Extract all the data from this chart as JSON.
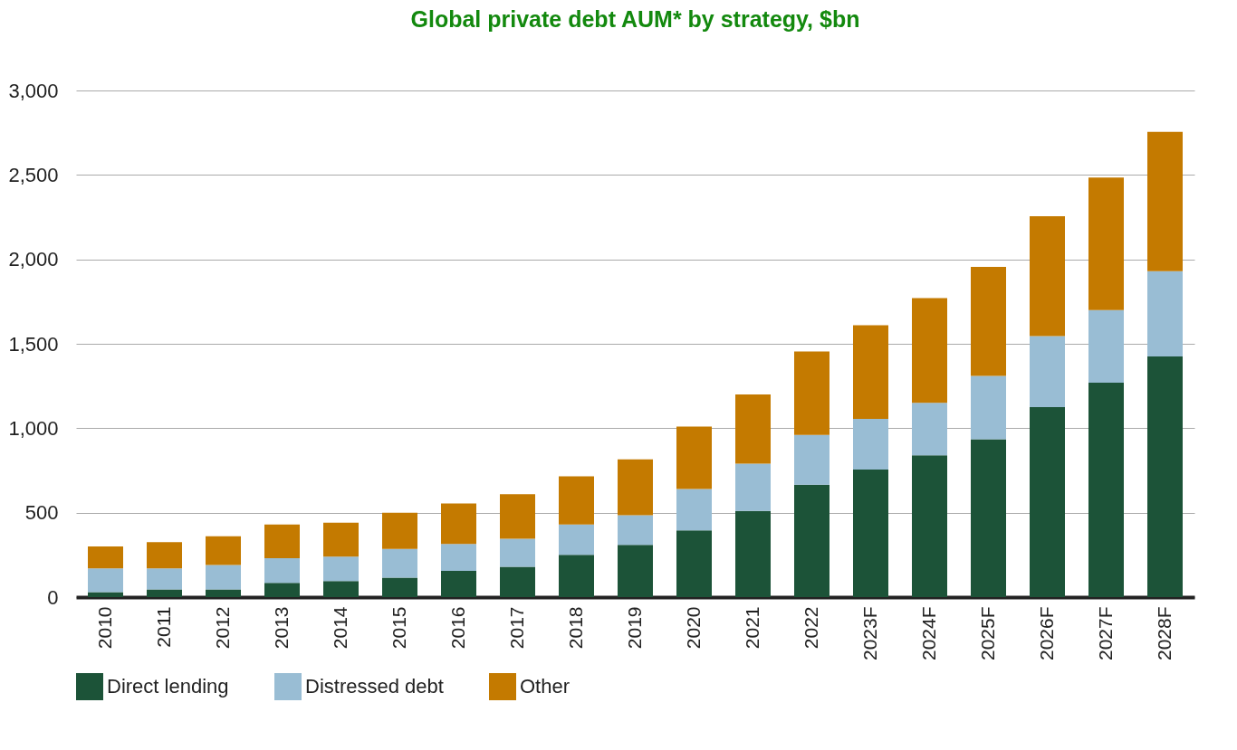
{
  "chart_data": {
    "type": "bar",
    "title": "Global private debt AUM* by strategy, $bn",
    "stacked": true,
    "categories": [
      "2010",
      "2011",
      "2012",
      "2013",
      "2014",
      "2015",
      "2016",
      "2017",
      "2018",
      "2019",
      "2020",
      "2021",
      "2022",
      "2023F",
      "2024F",
      "2025F",
      "2026F",
      "2027F",
      "2028F"
    ],
    "series": [
      {
        "name": "Direct lending",
        "color": "#1c5338",
        "values": [
          30,
          45,
          45,
          85,
          95,
          115,
          155,
          180,
          250,
          310,
          395,
          510,
          665,
          755,
          840,
          935,
          1125,
          1270,
          1425
        ]
      },
      {
        "name": "Distressed debt",
        "color": "#99bdd4",
        "values": [
          140,
          125,
          145,
          145,
          145,
          170,
          160,
          165,
          180,
          175,
          245,
          280,
          295,
          300,
          310,
          375,
          420,
          430,
          505
        ]
      },
      {
        "name": "Other",
        "color": "#c47a00",
        "values": [
          130,
          155,
          170,
          200,
          200,
          215,
          240,
          265,
          285,
          330,
          370,
          410,
          495,
          555,
          620,
          645,
          710,
          785,
          825
        ]
      }
    ],
    "ylim": [
      0,
      3000
    ],
    "yticks": [
      {
        "value": 0,
        "label": "0"
      },
      {
        "value": 500,
        "label": "500"
      },
      {
        "value": 1000,
        "label": "1,000"
      },
      {
        "value": 1500,
        "label": "1,500"
      },
      {
        "value": 2000,
        "label": "2,000"
      },
      {
        "value": 2500,
        "label": "2,500"
      },
      {
        "value": 3000,
        "label": "3,000"
      }
    ],
    "grid": "y",
    "legend": "bottom"
  }
}
